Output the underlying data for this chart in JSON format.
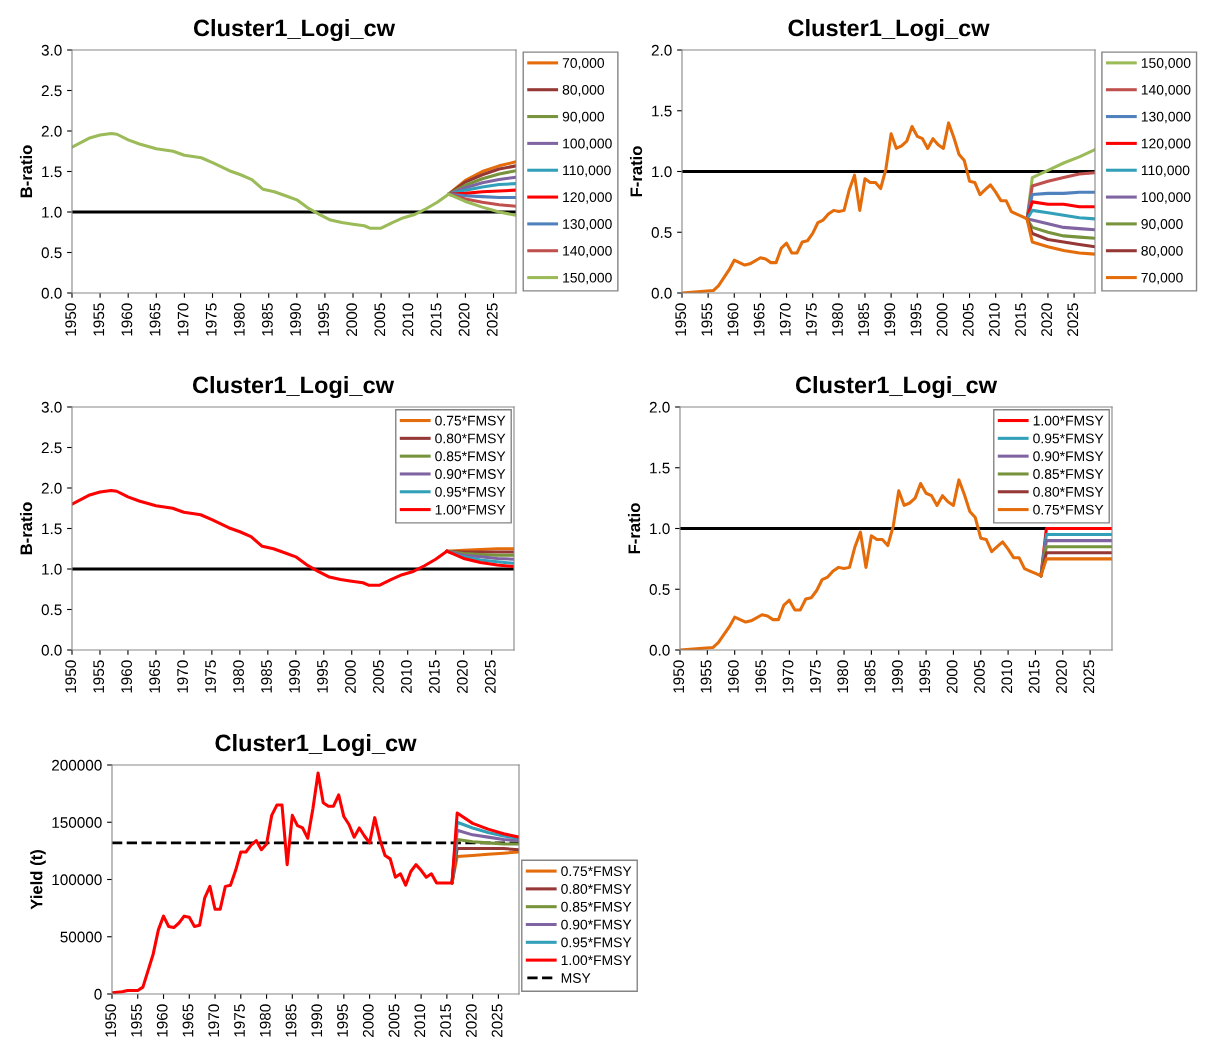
{
  "chart_data": [
    {
      "type": "line",
      "title": "Cluster1_Logi_cw",
      "ylabel": "B-ratio",
      "xlim": [
        1950,
        2029
      ],
      "xticks": [
        1950,
        1955,
        1960,
        1965,
        1970,
        1975,
        1980,
        1985,
        1990,
        1995,
        2000,
        2005,
        2010,
        2015,
        2020,
        2025
      ],
      "ylim": [
        0,
        3
      ],
      "yticks": [
        {
          "value": 0,
          "label": "0.0"
        },
        0.5,
        {
          "value": 1,
          "label": "1.0"
        },
        1.5,
        {
          "value": 2,
          "label": "2.0"
        },
        2.5,
        {
          "value": 3,
          "label": "3.0"
        }
      ],
      "legend": "right",
      "grid": false,
      "marker": "none",
      "line_style": "solid",
      "ref_lines": [
        {
          "axis": "y",
          "value": 1,
          "color": "#000000"
        }
      ],
      "series": [
        {
          "name": "70,000",
          "color": "#e46c0a",
          "x": [
            2017,
            2020,
            2023,
            2026,
            2029
          ],
          "values": [
            1.22,
            1.39,
            1.5,
            1.57,
            1.62
          ]
        },
        {
          "name": "80,000",
          "color": "#953735",
          "x": [
            2017,
            2020,
            2023,
            2026,
            2029
          ],
          "values": [
            1.22,
            1.37,
            1.46,
            1.53,
            1.57
          ]
        },
        {
          "name": "90,000",
          "color": "#77933c",
          "x": [
            2017,
            2020,
            2023,
            2026,
            2029
          ],
          "values": [
            1.22,
            1.33,
            1.41,
            1.47,
            1.51
          ]
        },
        {
          "name": "100,000",
          "color": "#8064a2",
          "x": [
            2017,
            2020,
            2023,
            2026,
            2029
          ],
          "values": [
            1.22,
            1.3,
            1.36,
            1.4,
            1.43
          ]
        },
        {
          "name": "110,000",
          "color": "#31a0b8",
          "x": [
            2017,
            2020,
            2023,
            2026,
            2029
          ],
          "values": [
            1.22,
            1.27,
            1.31,
            1.34,
            1.35
          ]
        },
        {
          "name": "120,000",
          "color": "#ff0000",
          "x": [
            2017,
            2020,
            2023,
            2026,
            2029
          ],
          "values": [
            1.22,
            1.23,
            1.25,
            1.26,
            1.27
          ]
        },
        {
          "name": "130,000",
          "color": "#4f81bd",
          "x": [
            2017,
            2020,
            2023,
            2026,
            2029
          ],
          "values": [
            1.22,
            1.2,
            1.19,
            1.18,
            1.18
          ]
        },
        {
          "name": "140,000",
          "color": "#c0504d",
          "x": [
            2017,
            2020,
            2023,
            2026,
            2029
          ],
          "values": [
            1.22,
            1.16,
            1.12,
            1.09,
            1.07
          ]
        },
        {
          "name": "150,000",
          "color": "#9bbb59",
          "x": [
            2017,
            2020,
            2023,
            2026,
            2029
          ],
          "values": [
            1.22,
            1.13,
            1.06,
            1.0,
            0.96
          ]
        },
        {
          "color": "#9bbb59",
          "x": [
            1950,
            1953,
            1955,
            1957,
            1958,
            1960,
            1962,
            1965,
            1968,
            1970,
            1973,
            1975,
            1978,
            1980,
            1982,
            1984,
            1986,
            1988,
            1990,
            1992,
            1994,
            1996,
            1998,
            2000,
            2002,
            2003,
            2005,
            2007,
            2009,
            2011,
            2013,
            2015,
            2017
          ],
          "values": [
            1.8,
            1.91,
            1.95,
            1.97,
            1.96,
            1.89,
            1.84,
            1.78,
            1.75,
            1.7,
            1.67,
            1.61,
            1.51,
            1.46,
            1.4,
            1.28,
            1.25,
            1.2,
            1.15,
            1.05,
            0.97,
            0.9,
            0.87,
            0.85,
            0.83,
            0.8,
            0.8,
            0.87,
            0.93,
            0.97,
            1.04,
            1.12,
            1.22
          ]
        }
      ]
    },
    {
      "type": "line",
      "title": "Cluster1_Logi_cw",
      "ylabel": "F-ratio",
      "xlim": [
        1950,
        2029
      ],
      "xticks": [
        1950,
        1955,
        1960,
        1965,
        1970,
        1975,
        1980,
        1985,
        1990,
        1995,
        2000,
        2005,
        2010,
        2015,
        2020,
        2025
      ],
      "ylim": [
        0,
        2
      ],
      "yticks": [
        {
          "value": 0,
          "label": "0.0"
        },
        0.5,
        {
          "value": 1,
          "label": "1.0"
        },
        1.5,
        {
          "value": 2,
          "label": "2.0"
        }
      ],
      "legend": "right",
      "grid": false,
      "marker": "none",
      "line_style": "solid",
      "ref_lines": [
        {
          "axis": "y",
          "value": 1,
          "color": "#000000"
        }
      ],
      "series": [
        {
          "name": "150,000",
          "color": "#9bbb59",
          "x": [
            2016,
            2017,
            2020,
            2023,
            2026,
            2029
          ],
          "values": [
            0.61,
            0.95,
            1.01,
            1.07,
            1.12,
            1.18
          ]
        },
        {
          "name": "140,000",
          "color": "#c0504d",
          "x": [
            2016,
            2017,
            2020,
            2023,
            2026,
            2029
          ],
          "values": [
            0.61,
            0.88,
            0.92,
            0.95,
            0.98,
            0.99
          ]
        },
        {
          "name": "130,000",
          "color": "#4f81bd",
          "x": [
            2016,
            2017,
            2020,
            2023,
            2026,
            2029
          ],
          "values": [
            0.61,
            0.81,
            0.82,
            0.82,
            0.83,
            0.83
          ]
        },
        {
          "name": "120,000",
          "color": "#ff0000",
          "x": [
            2016,
            2017,
            2020,
            2023,
            2026,
            2029
          ],
          "values": [
            0.61,
            0.75,
            0.73,
            0.73,
            0.71,
            0.71
          ]
        },
        {
          "name": "110,000",
          "color": "#31a0b8",
          "x": [
            2016,
            2017,
            2020,
            2023,
            2026,
            2029
          ],
          "values": [
            0.61,
            0.68,
            0.66,
            0.64,
            0.62,
            0.61
          ]
        },
        {
          "name": "100,000",
          "color": "#8064a2",
          "x": [
            2016,
            2017,
            2020,
            2023,
            2026,
            2029
          ],
          "values": [
            0.61,
            0.6,
            0.57,
            0.54,
            0.53,
            0.52
          ]
        },
        {
          "name": "90,000",
          "color": "#77933c",
          "x": [
            2016,
            2017,
            2020,
            2023,
            2026,
            2029
          ],
          "values": [
            0.61,
            0.54,
            0.5,
            0.47,
            0.46,
            0.45
          ]
        },
        {
          "name": "80,000",
          "color": "#953735",
          "x": [
            2016,
            2017,
            2020,
            2023,
            2026,
            2029
          ],
          "values": [
            0.61,
            0.49,
            0.44,
            0.42,
            0.4,
            0.38
          ]
        },
        {
          "name": "70,000",
          "color": "#e46c0a",
          "x": [
            2016,
            2017,
            2020,
            2023,
            2026,
            2029
          ],
          "values": [
            0.61,
            0.42,
            0.38,
            0.35,
            0.33,
            0.32
          ]
        },
        {
          "color": "#e46c0a",
          "x": [
            1950,
            1953,
            1956,
            1957,
            1959,
            1960,
            1962,
            1963,
            1965,
            1966,
            1967,
            1968,
            1969,
            1970,
            1971,
            1972,
            1973,
            1974,
            1975,
            1976,
            1977,
            1978,
            1979,
            1980,
            1981,
            1982,
            1983,
            1984,
            1985,
            1986,
            1987,
            1988,
            1989,
            1990,
            1991,
            1992,
            1993,
            1994,
            1995,
            1996,
            1997,
            1998,
            1999,
            2000,
            2001,
            2002,
            2003,
            2004,
            2005,
            2006,
            2007,
            2008,
            2009,
            2010,
            2011,
            2012,
            2013,
            2014,
            2015,
            2016
          ],
          "values": [
            0.0,
            0.01,
            0.02,
            0.06,
            0.19,
            0.27,
            0.23,
            0.24,
            0.29,
            0.28,
            0.25,
            0.25,
            0.37,
            0.41,
            0.33,
            0.33,
            0.42,
            0.43,
            0.49,
            0.58,
            0.6,
            0.65,
            0.68,
            0.67,
            0.68,
            0.85,
            0.97,
            0.68,
            0.94,
            0.91,
            0.91,
            0.86,
            1.02,
            1.31,
            1.19,
            1.21,
            1.25,
            1.37,
            1.29,
            1.27,
            1.19,
            1.27,
            1.22,
            1.19,
            1.4,
            1.28,
            1.14,
            1.09,
            0.92,
            0.91,
            0.81,
            0.85,
            0.89,
            0.83,
            0.76,
            0.76,
            0.67,
            0.65,
            0.63,
            0.61
          ]
        }
      ]
    },
    {
      "type": "line",
      "title": "Cluster1_Logi_cw",
      "ylabel": "B-ratio",
      "xlim": [
        1950,
        2029
      ],
      "xticks": [
        1950,
        1955,
        1960,
        1965,
        1970,
        1975,
        1980,
        1985,
        1990,
        1995,
        2000,
        2005,
        2010,
        2015,
        2020,
        2025
      ],
      "ylim": [
        0,
        3
      ],
      "yticks": [
        {
          "value": 0,
          "label": "0.0"
        },
        0.5,
        {
          "value": 1,
          "label": "1.0"
        },
        1.5,
        {
          "value": 2,
          "label": "2.0"
        },
        2.5,
        {
          "value": 3,
          "label": "3.0"
        }
      ],
      "legend": "top right",
      "grid": false,
      "marker": "none",
      "line_style": "solid",
      "ref_lines": [
        {
          "axis": "y",
          "value": 1,
          "color": "#000000"
        }
      ],
      "series": [
        {
          "name": "0.75*FMSY",
          "color": "#e46c0a",
          "x": [
            2017,
            2020,
            2023,
            2026,
            2029
          ],
          "values": [
            1.22,
            1.23,
            1.24,
            1.25,
            1.25
          ]
        },
        {
          "name": "0.80*FMSY",
          "color": "#953735",
          "x": [
            2017,
            2020,
            2023,
            2026,
            2029
          ],
          "values": [
            1.22,
            1.21,
            1.21,
            1.21,
            1.21
          ]
        },
        {
          "name": "0.85*FMSY",
          "color": "#77933c",
          "x": [
            2017,
            2020,
            2023,
            2026,
            2029
          ],
          "values": [
            1.22,
            1.19,
            1.18,
            1.17,
            1.17
          ]
        },
        {
          "name": "0.90*FMSY",
          "color": "#8064a2",
          "x": [
            2017,
            2020,
            2023,
            2026,
            2029
          ],
          "values": [
            1.22,
            1.17,
            1.15,
            1.13,
            1.12
          ]
        },
        {
          "name": "0.95*FMSY",
          "color": "#31a0b8",
          "x": [
            2017,
            2020,
            2023,
            2026,
            2029
          ],
          "values": [
            1.22,
            1.15,
            1.11,
            1.09,
            1.07
          ]
        },
        {
          "name": "1.00*FMSY",
          "color": "#ff0000",
          "x": [
            2017,
            2020,
            2023,
            2026,
            2029
          ],
          "values": [
            1.22,
            1.13,
            1.08,
            1.05,
            1.03
          ]
        },
        {
          "color": "#ff0000",
          "x": [
            1950,
            1953,
            1955,
            1957,
            1958,
            1960,
            1962,
            1965,
            1968,
            1970,
            1973,
            1975,
            1978,
            1980,
            1982,
            1984,
            1986,
            1988,
            1990,
            1992,
            1994,
            1996,
            1998,
            2000,
            2002,
            2003,
            2005,
            2007,
            2009,
            2011,
            2013,
            2015,
            2017
          ],
          "values": [
            1.8,
            1.91,
            1.95,
            1.97,
            1.96,
            1.89,
            1.84,
            1.78,
            1.75,
            1.7,
            1.67,
            1.61,
            1.51,
            1.46,
            1.4,
            1.28,
            1.25,
            1.2,
            1.15,
            1.05,
            0.97,
            0.9,
            0.87,
            0.85,
            0.83,
            0.8,
            0.8,
            0.87,
            0.93,
            0.97,
            1.04,
            1.12,
            1.22
          ]
        }
      ]
    },
    {
      "type": "line",
      "title": "Cluster1_Logi_cw",
      "ylabel": "F-ratio",
      "xlim": [
        1950,
        2029
      ],
      "xticks": [
        1950,
        1955,
        1960,
        1965,
        1970,
        1975,
        1980,
        1985,
        1990,
        1995,
        2000,
        2005,
        2010,
        2015,
        2020,
        2025
      ],
      "ylim": [
        0,
        2
      ],
      "yticks": [
        {
          "value": 0,
          "label": "0.0"
        },
        0.5,
        {
          "value": 1,
          "label": "1.0"
        },
        1.5,
        {
          "value": 2,
          "label": "2.0"
        }
      ],
      "legend": "top right",
      "grid": false,
      "marker": "none",
      "line_style": "solid",
      "ref_lines": [
        {
          "axis": "y",
          "value": 1,
          "color": "#000000"
        }
      ],
      "series": [
        {
          "name": "1.00*FMSY",
          "color": "#ff0000",
          "x": [
            2016,
            2017,
            2029
          ],
          "values": [
            0.61,
            1.0,
            1.0
          ]
        },
        {
          "name": "0.95*FMSY",
          "color": "#31a0b8",
          "x": [
            2016,
            2017,
            2029
          ],
          "values": [
            0.61,
            0.95,
            0.95
          ]
        },
        {
          "name": "0.90*FMSY",
          "color": "#8064a2",
          "x": [
            2016,
            2017,
            2029
          ],
          "values": [
            0.61,
            0.9,
            0.9
          ]
        },
        {
          "name": "0.85*FMSY",
          "color": "#77933c",
          "x": [
            2016,
            2017,
            2029
          ],
          "values": [
            0.61,
            0.85,
            0.85
          ]
        },
        {
          "name": "0.80*FMSY",
          "color": "#953735",
          "x": [
            2016,
            2017,
            2029
          ],
          "values": [
            0.61,
            0.8,
            0.8
          ]
        },
        {
          "name": "0.75*FMSY",
          "color": "#e46c0a",
          "x": [
            2016,
            2017,
            2029
          ],
          "values": [
            0.61,
            0.75,
            0.75
          ]
        },
        {
          "color": "#e46c0a",
          "x": [
            1950,
            1953,
            1956,
            1957,
            1959,
            1960,
            1962,
            1963,
            1965,
            1966,
            1967,
            1968,
            1969,
            1970,
            1971,
            1972,
            1973,
            1974,
            1975,
            1976,
            1977,
            1978,
            1979,
            1980,
            1981,
            1982,
            1983,
            1984,
            1985,
            1986,
            1987,
            1988,
            1989,
            1990,
            1991,
            1992,
            1993,
            1994,
            1995,
            1996,
            1997,
            1998,
            1999,
            2000,
            2001,
            2002,
            2003,
            2004,
            2005,
            2006,
            2007,
            2008,
            2009,
            2010,
            2011,
            2012,
            2013,
            2014,
            2015,
            2016
          ],
          "values": [
            0.0,
            0.01,
            0.02,
            0.06,
            0.19,
            0.27,
            0.23,
            0.24,
            0.29,
            0.28,
            0.25,
            0.25,
            0.37,
            0.41,
            0.33,
            0.33,
            0.42,
            0.43,
            0.49,
            0.58,
            0.6,
            0.65,
            0.68,
            0.67,
            0.68,
            0.85,
            0.97,
            0.68,
            0.94,
            0.91,
            0.91,
            0.86,
            1.02,
            1.31,
            1.19,
            1.21,
            1.25,
            1.37,
            1.29,
            1.27,
            1.19,
            1.27,
            1.22,
            1.19,
            1.4,
            1.28,
            1.14,
            1.09,
            0.92,
            0.91,
            0.81,
            0.85,
            0.89,
            0.83,
            0.76,
            0.76,
            0.67,
            0.65,
            0.63,
            0.61
          ]
        }
      ]
    },
    {
      "type": "line",
      "title": "Cluster1_Logi_cw",
      "ylabel": "Yield (t)",
      "xlim": [
        1950,
        2029
      ],
      "xticks": [
        1950,
        1955,
        1960,
        1965,
        1970,
        1975,
        1980,
        1985,
        1990,
        1995,
        2000,
        2005,
        2010,
        2015,
        2020,
        2025
      ],
      "ylim": [
        0,
        200000
      ],
      "yticks": [
        0,
        50000,
        100000,
        150000,
        200000
      ],
      "legend": "bottom right",
      "grid": false,
      "marker": "none",
      "line_style": "solid",
      "ref_lines": [
        {
          "axis": "y",
          "value": 132000,
          "label": "MSY",
          "color": "#000000",
          "line_style": "dashed"
        }
      ],
      "series": [
        {
          "name": "0.75*FMSY",
          "color": "#e46c0a",
          "x": [
            2016,
            2017,
            2020,
            2023,
            2026,
            2029
          ],
          "values": [
            97000,
            120000,
            121000,
            122000,
            123000,
            124000
          ]
        },
        {
          "name": "0.80*FMSY",
          "color": "#953735",
          "x": [
            2016,
            2017,
            2020,
            2023,
            2026,
            2029
          ],
          "values": [
            97000,
            127000,
            127000,
            127000,
            127000,
            126000
          ]
        },
        {
          "name": "0.85*FMSY",
          "color": "#77933c",
          "x": [
            2016,
            2017,
            2020,
            2023,
            2026,
            2029
          ],
          "values": [
            97000,
            135000,
            133000,
            132000,
            131000,
            131000
          ]
        },
        {
          "name": "0.90*FMSY",
          "color": "#8064a2",
          "x": [
            2016,
            2017,
            2020,
            2023,
            2026,
            2029
          ],
          "values": [
            97000,
            143000,
            139000,
            137000,
            135000,
            134000
          ]
        },
        {
          "name": "0.95*FMSY",
          "color": "#31a0b8",
          "x": [
            2016,
            2017,
            2020,
            2023,
            2026,
            2029
          ],
          "values": [
            97000,
            150000,
            145000,
            141000,
            138000,
            136000
          ]
        },
        {
          "name": "1.00*FMSY",
          "color": "#ff0000",
          "x": [
            2016,
            2017,
            2020,
            2023,
            2026,
            2029
          ],
          "values": [
            97000,
            158000,
            149000,
            144000,
            140000,
            137000
          ]
        },
        {
          "color": "#ff0000",
          "x": [
            1950,
            1952,
            1953,
            1955,
            1956,
            1958,
            1959,
            1960,
            1961,
            1962,
            1963,
            1964,
            1965,
            1966,
            1967,
            1968,
            1969,
            1970,
            1971,
            1972,
            1973,
            1974,
            1975,
            1976,
            1977,
            1978,
            1979,
            1980,
            1981,
            1982,
            1983,
            1984,
            1985,
            1986,
            1987,
            1988,
            1989,
            1990,
            1991,
            1992,
            1993,
            1994,
            1995,
            1996,
            1997,
            1998,
            1999,
            2000,
            2001,
            2002,
            2003,
            2004,
            2005,
            2006,
            2007,
            2008,
            2009,
            2010,
            2011,
            2012,
            2013,
            2014,
            2015,
            2016
          ],
          "values": [
            1000,
            2000,
            3000,
            3000,
            6000,
            35000,
            56000,
            68000,
            59000,
            58000,
            62000,
            68000,
            67000,
            59000,
            60000,
            84000,
            94000,
            74000,
            74000,
            94000,
            95000,
            108000,
            124000,
            124000,
            130000,
            134000,
            126000,
            131000,
            156000,
            165000,
            165000,
            113000,
            156000,
            147000,
            145000,
            136000,
            162000,
            193000,
            167000,
            164000,
            164000,
            174000,
            155000,
            148000,
            137000,
            145000,
            138000,
            132000,
            154000,
            135000,
            121000,
            118000,
            102000,
            105000,
            95000,
            107000,
            113000,
            108000,
            102000,
            105000,
            97000,
            97000,
            97000,
            97000
          ]
        }
      ]
    }
  ]
}
